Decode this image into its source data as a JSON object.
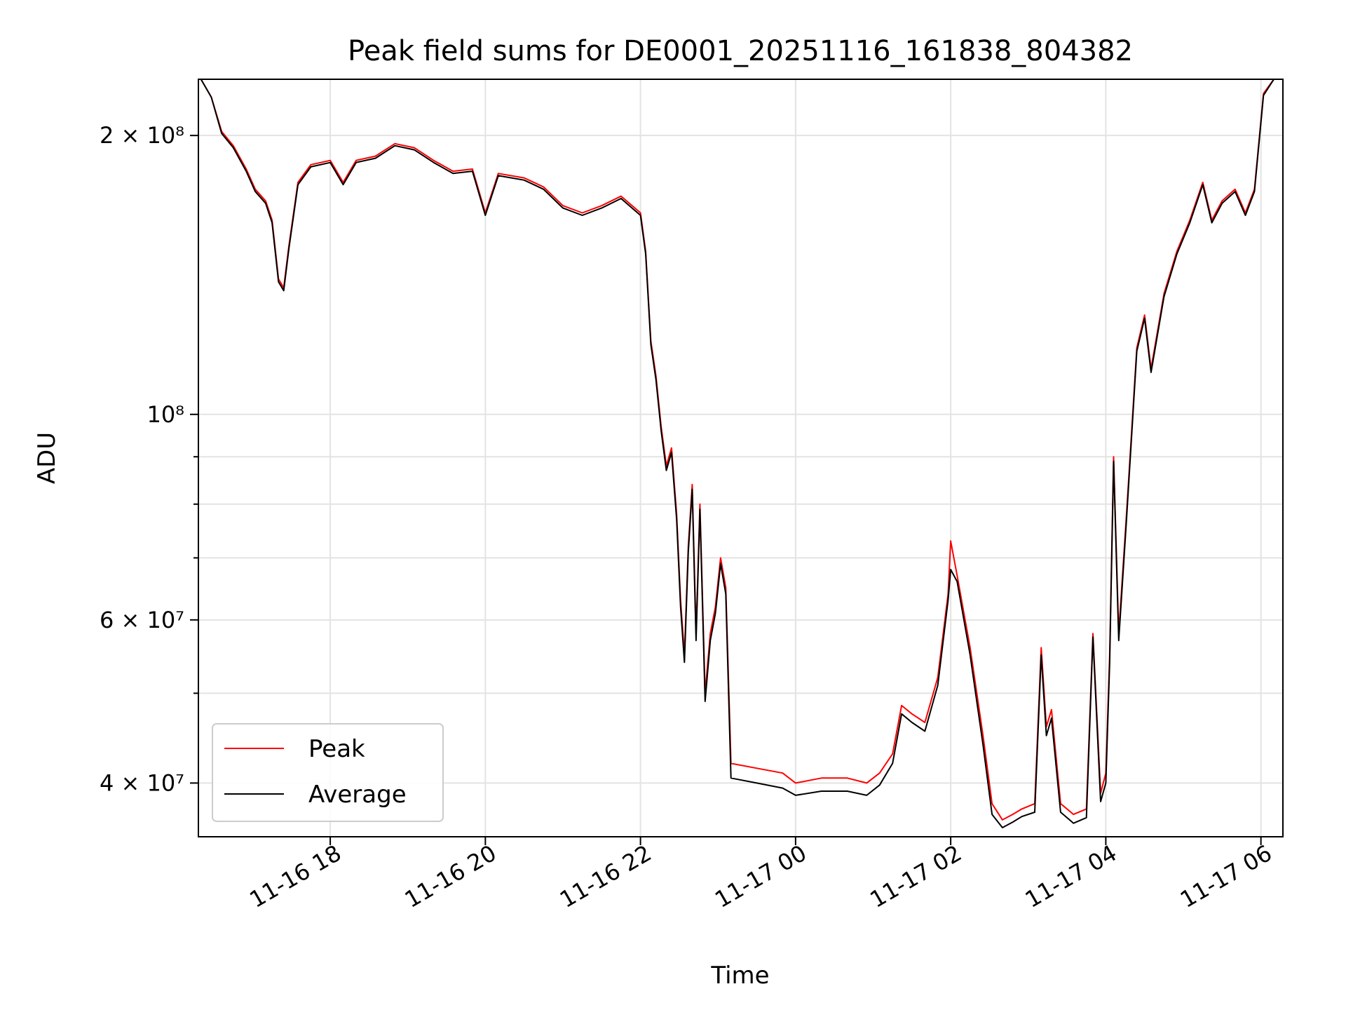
{
  "chart_data": {
    "type": "line",
    "title": "Peak field sums for DE0001_20251116_161838_804382",
    "xlabel": "Time",
    "ylabel": "ADU",
    "yscale": "log",
    "grid": true,
    "legend_position": "lower-left",
    "xlim": [
      "2025-11-16 16:18",
      "2025-11-17 06:17"
    ],
    "ylim": [
      35000000,
      230000000
    ],
    "x_ticks": [
      {
        "t": "2025-11-16 18:00",
        "label": "11-16 18"
      },
      {
        "t": "2025-11-16 20:00",
        "label": "11-16 20"
      },
      {
        "t": "2025-11-16 22:00",
        "label": "11-16 22"
      },
      {
        "t": "2025-11-17 00:00",
        "label": "11-17 00"
      },
      {
        "t": "2025-11-17 02:00",
        "label": "11-17 02"
      },
      {
        "t": "2025-11-17 04:00",
        "label": "11-17 04"
      },
      {
        "t": "2025-11-17 06:00",
        "label": "11-17 06"
      }
    ],
    "y_major_ticks": [
      {
        "v": 200000000,
        "label": "2 × 10⁸"
      },
      {
        "v": 100000000,
        "label": "10⁸"
      },
      {
        "v": 60000000,
        "label": "6 × 10⁷"
      },
      {
        "v": 40000000,
        "label": "4 × 10⁷"
      }
    ],
    "y_minor_ticks": [
      90000000,
      80000000,
      70000000,
      50000000
    ],
    "series": [
      {
        "name": "Peak",
        "color": "#ff0000",
        "points": [
          [
            "2025-11-16 16:20",
            230000000
          ],
          [
            "2025-11-16 16:28",
            220000000
          ],
          [
            "2025-11-16 16:36",
            202000000
          ],
          [
            "2025-11-16 16:45",
            195000000
          ],
          [
            "2025-11-16 16:55",
            184000000
          ],
          [
            "2025-11-16 17:02",
            175000000
          ],
          [
            "2025-11-16 17:10",
            170000000
          ],
          [
            "2025-11-16 17:15",
            162000000
          ],
          [
            "2025-11-16 17:20",
            140000000
          ],
          [
            "2025-11-16 17:24",
            137000000
          ],
          [
            "2025-11-16 17:28",
            152000000
          ],
          [
            "2025-11-16 17:35",
            178000000
          ],
          [
            "2025-11-16 17:45",
            186000000
          ],
          [
            "2025-11-16 18:00",
            188000000
          ],
          [
            "2025-11-16 18:10",
            178000000
          ],
          [
            "2025-11-16 18:20",
            188000000
          ],
          [
            "2025-11-16 18:35",
            190000000
          ],
          [
            "2025-11-16 18:50",
            196000000
          ],
          [
            "2025-11-16 19:05",
            194000000
          ],
          [
            "2025-11-16 19:20",
            188000000
          ],
          [
            "2025-11-16 19:35",
            183000000
          ],
          [
            "2025-11-16 19:50",
            184000000
          ],
          [
            "2025-11-16 20:00",
            165000000
          ],
          [
            "2025-11-16 20:10",
            182000000
          ],
          [
            "2025-11-16 20:30",
            180000000
          ],
          [
            "2025-11-16 20:45",
            176000000
          ],
          [
            "2025-11-16 21:00",
            168000000
          ],
          [
            "2025-11-16 21:15",
            165000000
          ],
          [
            "2025-11-16 21:30",
            168000000
          ],
          [
            "2025-11-16 21:45",
            172000000
          ],
          [
            "2025-11-16 22:00",
            165000000
          ],
          [
            "2025-11-16 22:04",
            150000000
          ],
          [
            "2025-11-16 22:08",
            120000000
          ],
          [
            "2025-11-16 22:12",
            110000000
          ],
          [
            "2025-11-16 22:16",
            97000000
          ],
          [
            "2025-11-16 22:20",
            88000000
          ],
          [
            "2025-11-16 22:24",
            92000000
          ],
          [
            "2025-11-16 22:28",
            78000000
          ],
          [
            "2025-11-16 22:31",
            63000000
          ],
          [
            "2025-11-16 22:34",
            55000000
          ],
          [
            "2025-11-16 22:37",
            72000000
          ],
          [
            "2025-11-16 22:40",
            84000000
          ],
          [
            "2025-11-16 22:43",
            58000000
          ],
          [
            "2025-11-16 22:46",
            80000000
          ],
          [
            "2025-11-16 22:50",
            50000000
          ],
          [
            "2025-11-16 22:54",
            58000000
          ],
          [
            "2025-11-16 22:58",
            62000000
          ],
          [
            "2025-11-16 23:02",
            70000000
          ],
          [
            "2025-11-16 23:06",
            65000000
          ],
          [
            "2025-11-16 23:10",
            42000000
          ],
          [
            "2025-11-16 23:30",
            41500000
          ],
          [
            "2025-11-16 23:50",
            41000000
          ],
          [
            "2025-11-17 00:00",
            40000000
          ],
          [
            "2025-11-17 00:20",
            40500000
          ],
          [
            "2025-11-17 00:40",
            40500000
          ],
          [
            "2025-11-17 00:55",
            40000000
          ],
          [
            "2025-11-17 01:05",
            41000000
          ],
          [
            "2025-11-17 01:15",
            43000000
          ],
          [
            "2025-11-17 01:22",
            48500000
          ],
          [
            "2025-11-17 01:30",
            47500000
          ],
          [
            "2025-11-17 01:40",
            46500000
          ],
          [
            "2025-11-17 01:50",
            52000000
          ],
          [
            "2025-11-17 01:58",
            64000000
          ],
          [
            "2025-11-17 02:00",
            73000000
          ],
          [
            "2025-11-17 02:05",
            67000000
          ],
          [
            "2025-11-17 02:15",
            56000000
          ],
          [
            "2025-11-17 02:25",
            45000000
          ],
          [
            "2025-11-17 02:32",
            38000000
          ],
          [
            "2025-11-17 02:40",
            36500000
          ],
          [
            "2025-11-17 02:48",
            37000000
          ],
          [
            "2025-11-17 02:55",
            37500000
          ],
          [
            "2025-11-17 03:05",
            38000000
          ],
          [
            "2025-11-17 03:10",
            56000000
          ],
          [
            "2025-11-17 03:14",
            46000000
          ],
          [
            "2025-11-17 03:18",
            48000000
          ],
          [
            "2025-11-17 03:25",
            38000000
          ],
          [
            "2025-11-17 03:35",
            37000000
          ],
          [
            "2025-11-17 03:45",
            37500000
          ],
          [
            "2025-11-17 03:50",
            58000000
          ],
          [
            "2025-11-17 03:56",
            39000000
          ],
          [
            "2025-11-17 04:00",
            41000000
          ],
          [
            "2025-11-17 04:03",
            55000000
          ],
          [
            "2025-11-17 04:06",
            90000000
          ],
          [
            "2025-11-17 04:10",
            58000000
          ],
          [
            "2025-11-17 04:16",
            78000000
          ],
          [
            "2025-11-17 04:24",
            118000000
          ],
          [
            "2025-11-17 04:30",
            128000000
          ],
          [
            "2025-11-17 04:35",
            112000000
          ],
          [
            "2025-11-17 04:45",
            135000000
          ],
          [
            "2025-11-17 04:55",
            150000000
          ],
          [
            "2025-11-17 05:05",
            162000000
          ],
          [
            "2025-11-17 05:15",
            178000000
          ],
          [
            "2025-11-17 05:22",
            162000000
          ],
          [
            "2025-11-17 05:30",
            170000000
          ],
          [
            "2025-11-17 05:40",
            175000000
          ],
          [
            "2025-11-17 05:48",
            165000000
          ],
          [
            "2025-11-17 05:55",
            175000000
          ],
          [
            "2025-11-17 06:02",
            222000000
          ],
          [
            "2025-11-17 06:10",
            230000000
          ]
        ]
      },
      {
        "name": "Average",
        "color": "#000000",
        "points": [
          [
            "2025-11-16 16:20",
            230000000
          ],
          [
            "2025-11-16 16:28",
            220000000
          ],
          [
            "2025-11-16 16:36",
            201000000
          ],
          [
            "2025-11-16 16:45",
            194000000
          ],
          [
            "2025-11-16 16:55",
            183000000
          ],
          [
            "2025-11-16 17:02",
            174000000
          ],
          [
            "2025-11-16 17:10",
            169000000
          ],
          [
            "2025-11-16 17:15",
            161000000
          ],
          [
            "2025-11-16 17:20",
            139000000
          ],
          [
            "2025-11-16 17:24",
            136000000
          ],
          [
            "2025-11-16 17:28",
            151000000
          ],
          [
            "2025-11-16 17:35",
            177000000
          ],
          [
            "2025-11-16 17:45",
            185000000
          ],
          [
            "2025-11-16 18:00",
            187000000
          ],
          [
            "2025-11-16 18:10",
            177000000
          ],
          [
            "2025-11-16 18:20",
            187000000
          ],
          [
            "2025-11-16 18:35",
            189000000
          ],
          [
            "2025-11-16 18:50",
            195000000
          ],
          [
            "2025-11-16 19:05",
            193000000
          ],
          [
            "2025-11-16 19:20",
            187000000
          ],
          [
            "2025-11-16 19:35",
            182000000
          ],
          [
            "2025-11-16 19:50",
            183000000
          ],
          [
            "2025-11-16 20:00",
            164000000
          ],
          [
            "2025-11-16 20:10",
            181000000
          ],
          [
            "2025-11-16 20:30",
            179000000
          ],
          [
            "2025-11-16 20:45",
            175000000
          ],
          [
            "2025-11-16 21:00",
            167000000
          ],
          [
            "2025-11-16 21:15",
            164000000
          ],
          [
            "2025-11-16 21:30",
            167000000
          ],
          [
            "2025-11-16 21:45",
            171000000
          ],
          [
            "2025-11-16 22:00",
            164000000
          ],
          [
            "2025-11-16 22:04",
            149000000
          ],
          [
            "2025-11-16 22:08",
            119000000
          ],
          [
            "2025-11-16 22:12",
            109000000
          ],
          [
            "2025-11-16 22:16",
            96000000
          ],
          [
            "2025-11-16 22:20",
            87000000
          ],
          [
            "2025-11-16 22:24",
            91000000
          ],
          [
            "2025-11-16 22:28",
            77000000
          ],
          [
            "2025-11-16 22:31",
            62000000
          ],
          [
            "2025-11-16 22:34",
            54000000
          ],
          [
            "2025-11-16 22:37",
            71000000
          ],
          [
            "2025-11-16 22:40",
            83000000
          ],
          [
            "2025-11-16 22:43",
            57000000
          ],
          [
            "2025-11-16 22:46",
            79000000
          ],
          [
            "2025-11-16 22:50",
            49000000
          ],
          [
            "2025-11-16 22:54",
            57000000
          ],
          [
            "2025-11-16 22:58",
            61000000
          ],
          [
            "2025-11-16 23:02",
            69000000
          ],
          [
            "2025-11-16 23:06",
            64000000
          ],
          [
            "2025-11-16 23:10",
            40500000
          ],
          [
            "2025-11-16 23:30",
            40000000
          ],
          [
            "2025-11-16 23:50",
            39500000
          ],
          [
            "2025-11-17 00:00",
            38800000
          ],
          [
            "2025-11-17 00:20",
            39200000
          ],
          [
            "2025-11-17 00:40",
            39200000
          ],
          [
            "2025-11-17 00:55",
            38800000
          ],
          [
            "2025-11-17 01:05",
            39800000
          ],
          [
            "2025-11-17 01:15",
            42000000
          ],
          [
            "2025-11-17 01:22",
            47500000
          ],
          [
            "2025-11-17 01:30",
            46500000
          ],
          [
            "2025-11-17 01:40",
            45500000
          ],
          [
            "2025-11-17 01:50",
            51000000
          ],
          [
            "2025-11-17 01:58",
            63000000
          ],
          [
            "2025-11-17 02:00",
            68000000
          ],
          [
            "2025-11-17 02:05",
            66000000
          ],
          [
            "2025-11-17 02:15",
            55000000
          ],
          [
            "2025-11-17 02:25",
            44000000
          ],
          [
            "2025-11-17 02:32",
            37000000
          ],
          [
            "2025-11-17 02:40",
            35800000
          ],
          [
            "2025-11-17 02:48",
            36300000
          ],
          [
            "2025-11-17 02:55",
            36800000
          ],
          [
            "2025-11-17 03:05",
            37200000
          ],
          [
            "2025-11-17 03:10",
            55000000
          ],
          [
            "2025-11-17 03:14",
            45000000
          ],
          [
            "2025-11-17 03:18",
            47000000
          ],
          [
            "2025-11-17 03:25",
            37200000
          ],
          [
            "2025-11-17 03:35",
            36200000
          ],
          [
            "2025-11-17 03:45",
            36700000
          ],
          [
            "2025-11-17 03:50",
            57500000
          ],
          [
            "2025-11-17 03:56",
            38200000
          ],
          [
            "2025-11-17 04:00",
            40000000
          ],
          [
            "2025-11-17 04:03",
            54000000
          ],
          [
            "2025-11-17 04:06",
            89000000
          ],
          [
            "2025-11-17 04:10",
            57000000
          ],
          [
            "2025-11-17 04:16",
            77000000
          ],
          [
            "2025-11-17 04:24",
            117000000
          ],
          [
            "2025-11-17 04:30",
            127000000
          ],
          [
            "2025-11-17 04:35",
            111000000
          ],
          [
            "2025-11-17 04:45",
            134000000
          ],
          [
            "2025-11-17 04:55",
            149000000
          ],
          [
            "2025-11-17 05:05",
            161000000
          ],
          [
            "2025-11-17 05:15",
            177000000
          ],
          [
            "2025-11-17 05:22",
            161000000
          ],
          [
            "2025-11-17 05:30",
            169000000
          ],
          [
            "2025-11-17 05:40",
            174000000
          ],
          [
            "2025-11-17 05:48",
            164000000
          ],
          [
            "2025-11-17 05:55",
            174000000
          ],
          [
            "2025-11-17 06:02",
            221000000
          ],
          [
            "2025-11-17 06:10",
            230000000
          ]
        ]
      }
    ]
  }
}
